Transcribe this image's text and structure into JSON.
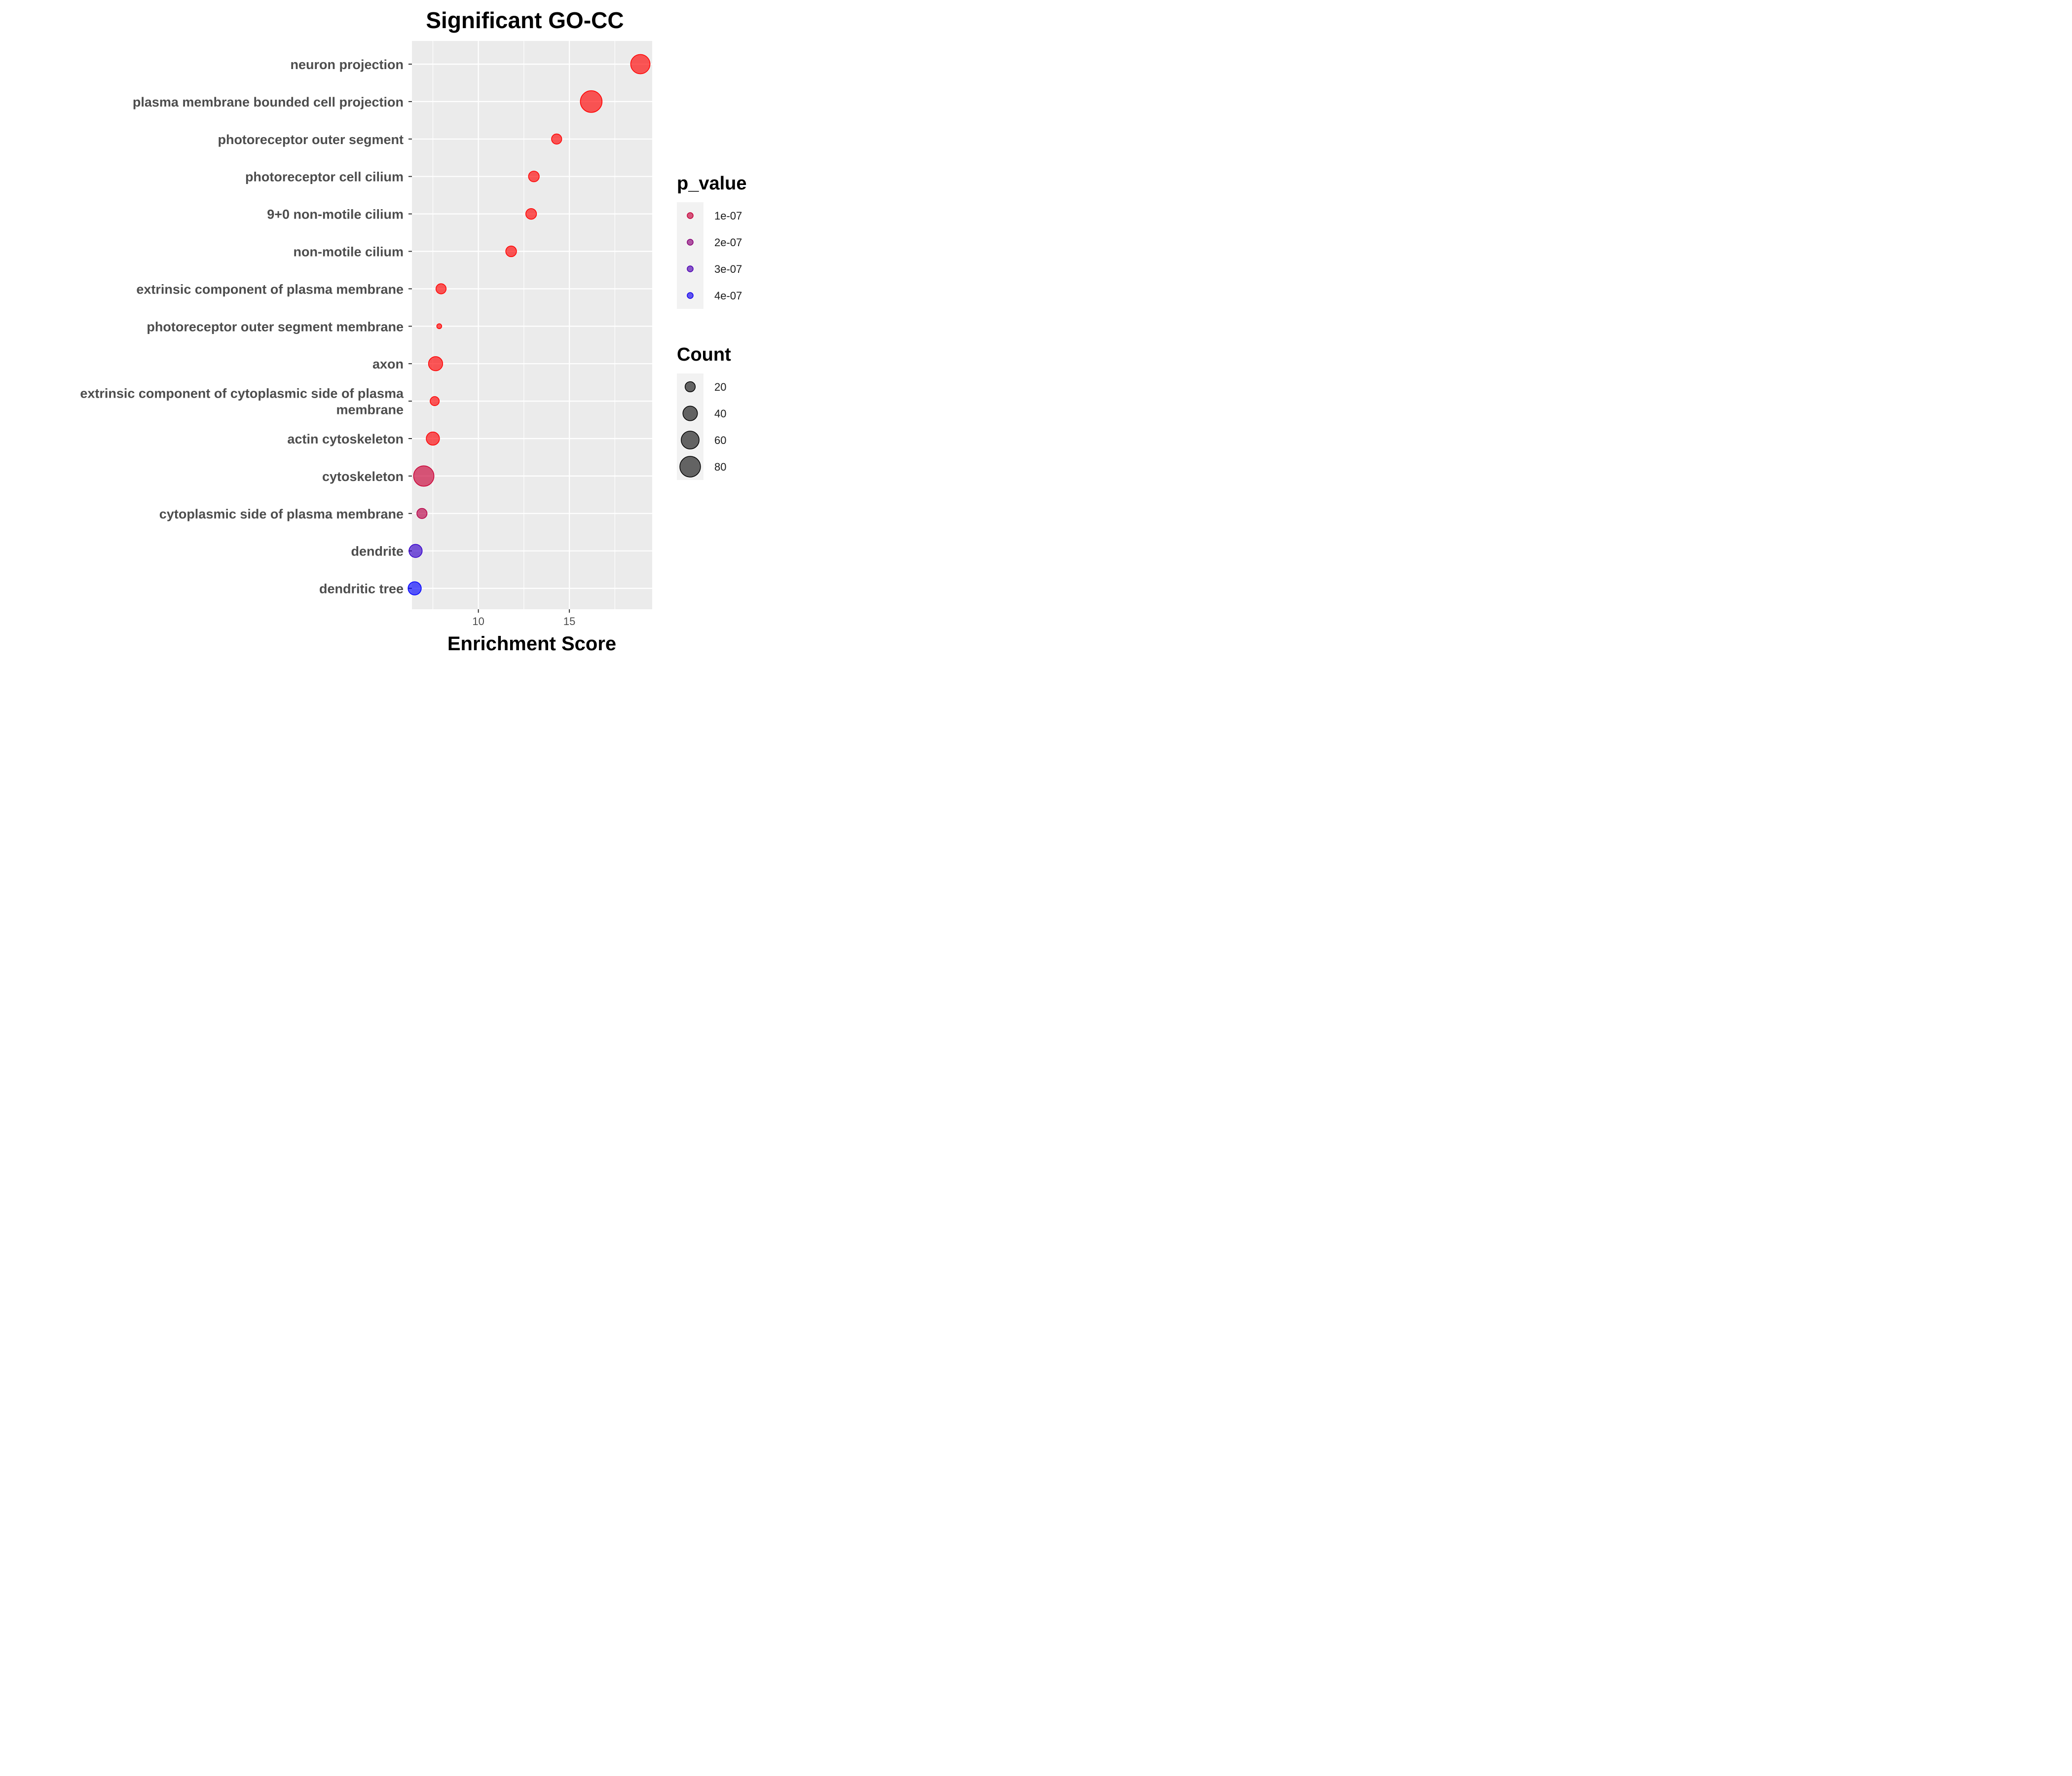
{
  "chart_data": {
    "type": "scatter",
    "title": "Significant GO-CC",
    "xlabel": "Enrichment Score",
    "ylabel": "",
    "xlim": [
      6.35,
      19.55
    ],
    "x_ticks": [
      10,
      15
    ],
    "x_tick_labels": [
      "10",
      "15"
    ],
    "grid": true,
    "legend_position": "right",
    "categories": [
      "neuron projection",
      "plasma membrane bounded cell projection",
      "photoreceptor outer segment",
      "photoreceptor cell cilium",
      "9+0 non-motile cilium",
      "non-motile cilium",
      "extrinsic component of plasma membrane",
      "photoreceptor outer segment membrane",
      "axon",
      "extrinsic component of cytoplasmic side of plasma membrane",
      "actin cytoskeleton",
      "cytoskeleton",
      "cytoplasmic side of plasma membrane",
      "dendrite",
      "dendritic tree"
    ],
    "category_label_lines": [
      [
        "neuron projection"
      ],
      [
        "plasma membrane bounded cell projection"
      ],
      [
        "photoreceptor outer segment"
      ],
      [
        "photoreceptor cell cilium"
      ],
      [
        "9+0 non-motile cilium"
      ],
      [
        "non-motile cilium"
      ],
      [
        "extrinsic component of plasma membrane"
      ],
      [
        "photoreceptor outer segment membrane"
      ],
      [
        "axon"
      ],
      [
        "extrinsic component of cytoplasmic side of plasma",
        "membrane"
      ],
      [
        "actin cytoskeleton"
      ],
      [
        "cytoskeleton"
      ],
      [
        "cytoplasmic side of plasma membrane"
      ],
      [
        "dendrite"
      ],
      [
        "dendritic tree"
      ]
    ],
    "points": [
      {
        "term": "neuron projection",
        "x": 18.9,
        "count": 70,
        "p_value": 0.0
      },
      {
        "term": "plasma membrane bounded cell projection",
        "x": 16.2,
        "count": 88,
        "p_value": 0.0
      },
      {
        "term": "photoreceptor outer segment",
        "x": 14.3,
        "count": 20,
        "p_value": 0.0
      },
      {
        "term": "photoreceptor cell cilium",
        "x": 13.05,
        "count": 22,
        "p_value": 0.0
      },
      {
        "term": "9+0 non-motile cilium",
        "x": 12.9,
        "count": 22,
        "p_value": 0.0
      },
      {
        "term": "non-motile cilium",
        "x": 11.8,
        "count": 22,
        "p_value": 0.0
      },
      {
        "term": "extrinsic component of plasma membrane",
        "x": 7.95,
        "count": 20,
        "p_value": 0.0
      },
      {
        "term": "photoreceptor outer segment membrane",
        "x": 7.85,
        "count": 5,
        "p_value": 0.0
      },
      {
        "term": "axon",
        "x": 7.65,
        "count": 38,
        "p_value": 2e-09
      },
      {
        "term": "extrinsic component of cytoplasmic side of plasma membrane",
        "x": 7.6,
        "count": 16,
        "p_value": 2e-09
      },
      {
        "term": "actin cytoskeleton",
        "x": 7.5,
        "count": 33,
        "p_value": 5e-09
      },
      {
        "term": "cytoskeleton",
        "x": 7.0,
        "count": 78,
        "p_value": 9e-08
      },
      {
        "term": "cytoplasmic side of plasma membrane",
        "x": 6.9,
        "count": 20,
        "p_value": 1.2e-07
      },
      {
        "term": "dendrite",
        "x": 6.55,
        "count": 33,
        "p_value": 3.4e-07
      },
      {
        "term": "dendritic tree",
        "x": 6.5,
        "count": 33,
        "p_value": 4.3e-07
      }
    ],
    "color_legend": {
      "title": "p_value",
      "entries": [
        {
          "label": "1e-07",
          "value": 1e-07
        },
        {
          "label": "2e-07",
          "value": 2e-07
        },
        {
          "label": "3e-07",
          "value": 3e-07
        },
        {
          "label": "4e-07",
          "value": 4e-07
        }
      ],
      "low_color": "#ff0000",
      "high_color": "#0000ff",
      "range": [
        0,
        4.3e-07
      ]
    },
    "size_legend": {
      "title": "Count",
      "entries": [
        {
          "label": "20",
          "value": 20
        },
        {
          "label": "40",
          "value": 40
        },
        {
          "label": "60",
          "value": 60
        },
        {
          "label": "80",
          "value": 80
        }
      ],
      "range": [
        5,
        88
      ]
    },
    "colors": {
      "panel_background": "#ebebeb",
      "grid_line": "#ffffff",
      "legend_key_background": "#f2f2f2",
      "size_key_fill": "#333333"
    }
  }
}
